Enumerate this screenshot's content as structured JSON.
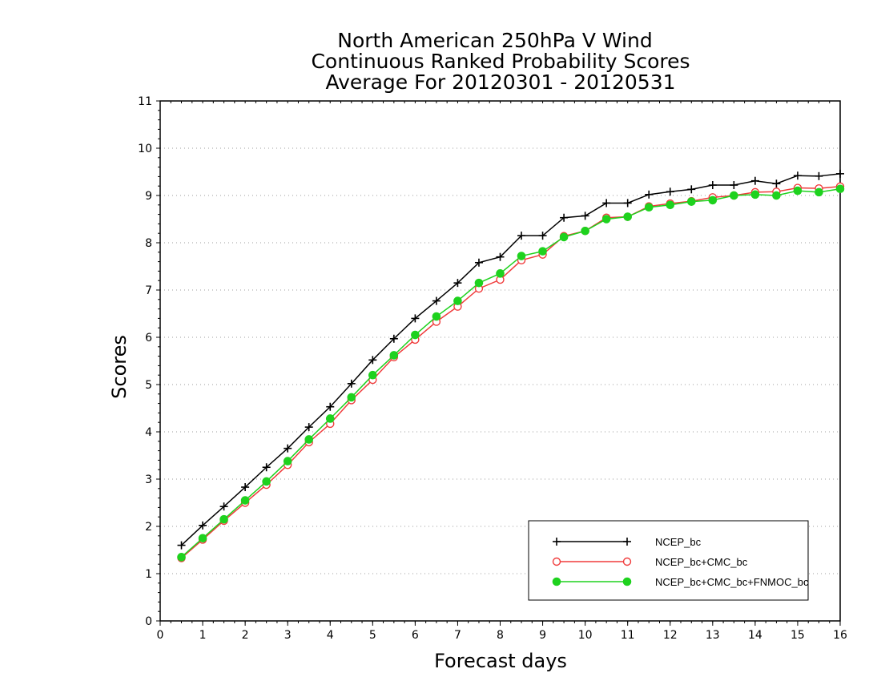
{
  "chart_data": {
    "type": "line",
    "title_lines": [
      "North American 250hPa V Wind",
      "Continuous Ranked Probability Scores",
      "Average For 20120301 - 20120531"
    ],
    "xlabel": "Forecast days",
    "ylabel": "Scores",
    "xlim": [
      0,
      16
    ],
    "ylim": [
      0,
      11
    ],
    "x_ticks": [
      "0",
      "1",
      "2",
      "3",
      "4",
      "5",
      "6",
      "7",
      "8",
      "9",
      "10",
      "11",
      "12",
      "13",
      "14",
      "15",
      "16"
    ],
    "y_ticks": [
      "0",
      "1",
      "2",
      "3",
      "4",
      "5",
      "6",
      "7",
      "8",
      "9",
      "10",
      "11"
    ],
    "grid": "horizontal dotted",
    "legend_position": "bottom-right",
    "x": [
      0.5,
      1,
      1.5,
      2,
      2.5,
      3,
      3.5,
      4,
      4.5,
      5,
      5.5,
      6,
      6.5,
      7,
      7.5,
      8,
      8.5,
      9,
      9.5,
      10,
      10.5,
      11,
      11.5,
      12,
      12.5,
      13,
      13.5,
      14,
      14.5,
      15,
      15.5,
      16
    ],
    "series": [
      {
        "name": "NCEP_bc",
        "color": "#000000",
        "marker": "plus",
        "values": [
          1.6,
          2.02,
          2.42,
          2.83,
          3.25,
          3.65,
          4.1,
          4.53,
          5.02,
          5.52,
          5.97,
          6.4,
          6.77,
          7.15,
          7.58,
          7.7,
          8.15,
          8.15,
          8.53,
          8.57,
          8.84,
          8.84,
          9.02,
          9.08,
          9.13,
          9.22,
          9.22,
          9.31,
          9.25,
          9.42,
          9.41,
          9.46
        ]
      },
      {
        "name": "NCEP_bc+CMC_bc",
        "color": "#f03c3c",
        "marker": "open-circle",
        "values": [
          1.33,
          1.72,
          2.12,
          2.5,
          2.88,
          3.3,
          3.78,
          4.17,
          4.67,
          5.1,
          5.58,
          5.95,
          6.33,
          6.65,
          7.03,
          7.22,
          7.63,
          7.75,
          8.14,
          8.25,
          8.53,
          8.55,
          8.77,
          8.83,
          8.88,
          8.96,
          9.0,
          9.07,
          9.08,
          9.16,
          9.15,
          9.19
        ]
      },
      {
        "name": "NCEP_bc+CMC_bc+FNMOC_bc",
        "color": "#1ed21e",
        "marker": "filled-circle",
        "values": [
          1.35,
          1.75,
          2.15,
          2.55,
          2.95,
          3.38,
          3.84,
          4.28,
          4.73,
          5.2,
          5.62,
          6.05,
          6.44,
          6.77,
          7.15,
          7.35,
          7.72,
          7.82,
          8.12,
          8.25,
          8.5,
          8.55,
          8.75,
          8.8,
          8.87,
          8.9,
          9.0,
          9.02,
          9.0,
          9.1,
          9.07,
          9.14
        ]
      }
    ]
  }
}
